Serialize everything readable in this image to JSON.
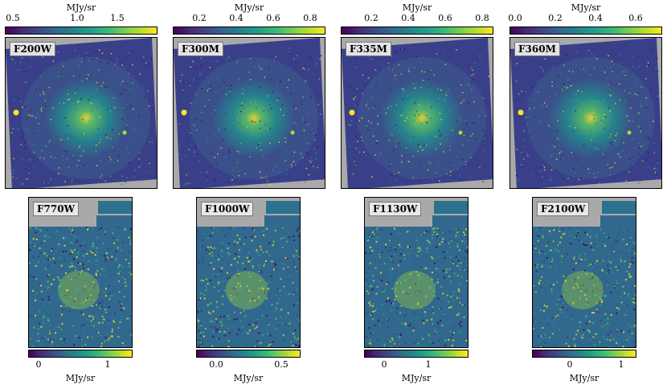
{
  "panels": [
    {
      "filter": "F200W",
      "unit": "MJy/sr",
      "ticks": [
        "0.5",
        "1.0",
        "1.5"
      ]
    },
    {
      "filter": "F300M",
      "unit": "MJy/sr",
      "ticks": [
        "0.2",
        "0.4",
        "0.6",
        "0.8"
      ]
    },
    {
      "filter": "F335M",
      "unit": "MJy/sr",
      "ticks": [
        "0.2",
        "0.4",
        "0.6",
        "0.8"
      ]
    },
    {
      "filter": "F360M",
      "unit": "MJy/sr",
      "ticks": [
        "0.0",
        "0.2",
        "0.4",
        "0.6"
      ]
    },
    {
      "filter": "F770W",
      "unit": "MJy/sr",
      "ticks": [
        "0",
        "1"
      ]
    },
    {
      "filter": "F1000W",
      "unit": "MJy/sr",
      "ticks": [
        "0.0",
        "0.5"
      ]
    },
    {
      "filter": "F1130W",
      "unit": "MJy/sr",
      "ticks": [
        "0",
        "1"
      ]
    },
    {
      "filter": "F2100W",
      "unit": "MJy/sr",
      "ticks": [
        "0",
        "1"
      ]
    }
  ],
  "colors": {
    "background": "#a9a9a9",
    "colormap": "viridis",
    "low": "#440154",
    "high": "#fde725"
  }
}
